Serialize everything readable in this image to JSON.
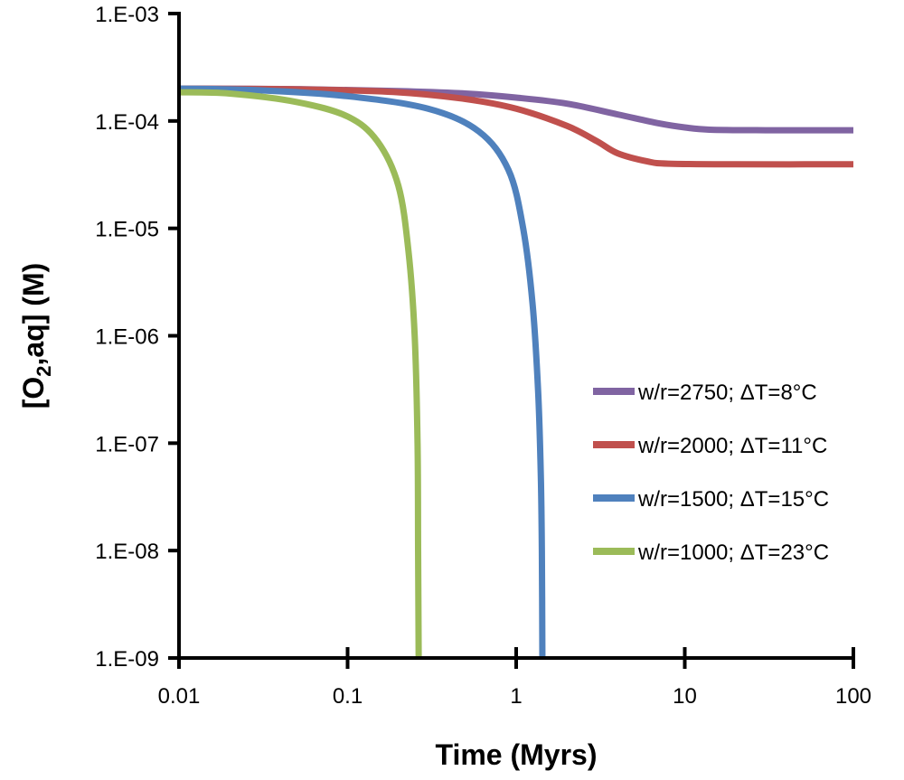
{
  "chart_data": {
    "type": "line",
    "title": "",
    "xlabel": "Time (Myrs)",
    "ylabel_main": "[O",
    "ylabel_sub": "2",
    "ylabel_rest": ",aq] (M)",
    "xscale": "log",
    "yscale": "log",
    "xlim": [
      0.01,
      100
    ],
    "ylim": [
      1e-09,
      0.001
    ],
    "x_ticks": [
      0.01,
      0.1,
      1,
      10,
      100
    ],
    "x_tick_labels": [
      "0.01",
      "0.1",
      "1",
      "10",
      "100"
    ],
    "y_ticks": [
      0.001,
      0.0001,
      1e-05,
      1e-06,
      1e-07,
      1e-08,
      1e-09
    ],
    "y_tick_labels": [
      "1.E-03",
      "1.E-04",
      "1.E-05",
      "1.E-06",
      "1.E-07",
      "1.E-08",
      "1.E-09"
    ],
    "grid": false,
    "legend_position": "right",
    "series": [
      {
        "name": "w/r=2750; ΔT=8°C",
        "color": "#8064a2",
        "points": [
          [
            0.01,
            0.0002
          ],
          [
            0.05,
            0.000198
          ],
          [
            0.2,
            0.00019
          ],
          [
            0.5,
            0.00018
          ],
          [
            1,
            0.000165
          ],
          [
            2,
            0.000145
          ],
          [
            4,
            0.000115
          ],
          [
            7,
            9.5e-05
          ],
          [
            10,
            8.7e-05
          ],
          [
            14,
            8.3e-05
          ],
          [
            30,
            8.2e-05
          ],
          [
            100,
            8.2e-05
          ]
        ]
      },
      {
        "name": "w/r=2000; ΔT=11°C",
        "color": "#c0504d",
        "points": [
          [
            0.01,
            0.0002
          ],
          [
            0.05,
            0.000197
          ],
          [
            0.2,
            0.000185
          ],
          [
            0.5,
            0.00016
          ],
          [
            1,
            0.00013
          ],
          [
            2,
            9e-05
          ],
          [
            3,
            6.5e-05
          ],
          [
            4,
            5e-05
          ],
          [
            6,
            4.2e-05
          ],
          [
            8,
            4e-05
          ],
          [
            20,
            3.95e-05
          ],
          [
            100,
            3.95e-05
          ]
        ]
      },
      {
        "name": "w/r=1500; ΔT=15°C",
        "color": "#4f81bd",
        "points": [
          [
            0.01,
            0.0002
          ],
          [
            0.03,
            0.000193
          ],
          [
            0.1,
            0.00017
          ],
          [
            0.3,
            0.00013
          ],
          [
            0.6,
            8e-05
          ],
          [
            0.9,
            3.5e-05
          ],
          [
            1.1,
            1e-05
          ],
          [
            1.25,
            2e-06
          ],
          [
            1.35,
            3e-07
          ],
          [
            1.4,
            5e-08
          ],
          [
            1.42,
            1e-08
          ],
          [
            1.43,
            1e-09
          ]
        ]
      },
      {
        "name": "w/r=1000; ΔT=23°C",
        "color": "#9bbb59",
        "points": [
          [
            0.01,
            0.000185
          ],
          [
            0.02,
            0.00018
          ],
          [
            0.05,
            0.00015
          ],
          [
            0.1,
            0.00011
          ],
          [
            0.15,
            6.5e-05
          ],
          [
            0.2,
            2.5e-05
          ],
          [
            0.23,
            6e-06
          ],
          [
            0.25,
            1e-06
          ],
          [
            0.26,
            1e-07
          ],
          [
            0.262,
            1e-08
          ],
          [
            0.264,
            1e-09
          ]
        ]
      }
    ]
  }
}
